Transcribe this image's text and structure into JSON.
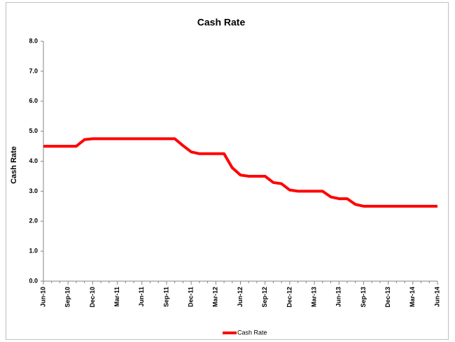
{
  "chart_data": {
    "type": "line",
    "title": "Cash Rate",
    "ylabel": "Cash Rate",
    "categories": [
      "Jun-10",
      null,
      null,
      "Sep-10",
      null,
      null,
      "Dec-10",
      null,
      null,
      "Mar-11",
      null,
      null,
      "Jun-11",
      null,
      null,
      "Sep-11",
      null,
      null,
      "Dec-11",
      null,
      null,
      "Mar-12",
      null,
      null,
      "Jun-12",
      null,
      null,
      "Sep-12",
      null,
      null,
      "Dec-12",
      null,
      null,
      "Mar-13",
      null,
      null,
      "Jun-13",
      null,
      null,
      "Sep-13",
      null,
      null,
      "Dec-13",
      null,
      null,
      "Mar-14",
      null,
      null,
      "Jun-14"
    ],
    "series": [
      {
        "name": "Cash Rate",
        "color": "#ff0000",
        "values": [
          4.5,
          4.5,
          4.5,
          4.5,
          4.5,
          4.72,
          4.75,
          4.75,
          4.75,
          4.75,
          4.75,
          4.75,
          4.75,
          4.75,
          4.75,
          4.75,
          4.75,
          4.52,
          4.31,
          4.25,
          4.25,
          4.25,
          4.25,
          3.78,
          3.54,
          3.5,
          3.5,
          3.5,
          3.29,
          3.25,
          3.04,
          3.0,
          3.0,
          3.0,
          3.0,
          2.81,
          2.75,
          2.75,
          2.56,
          2.5,
          2.5,
          2.5,
          2.5,
          2.5,
          2.5,
          2.5,
          2.5,
          2.5,
          2.5
        ]
      }
    ],
    "ylim": [
      0,
      8
    ],
    "yticks": [
      {
        "value": 0,
        "label": "0.0"
      },
      {
        "value": 1,
        "label": "1.0"
      },
      {
        "value": 2,
        "label": "2.0"
      },
      {
        "value": 3,
        "label": "3.0"
      },
      {
        "value": 4,
        "label": "4.0"
      },
      {
        "value": 5,
        "label": "5.0"
      },
      {
        "value": 6,
        "label": "6.0"
      },
      {
        "value": 7,
        "label": "7.0"
      },
      {
        "value": 8,
        "label": "8.0"
      }
    ],
    "legend": "bottom"
  }
}
